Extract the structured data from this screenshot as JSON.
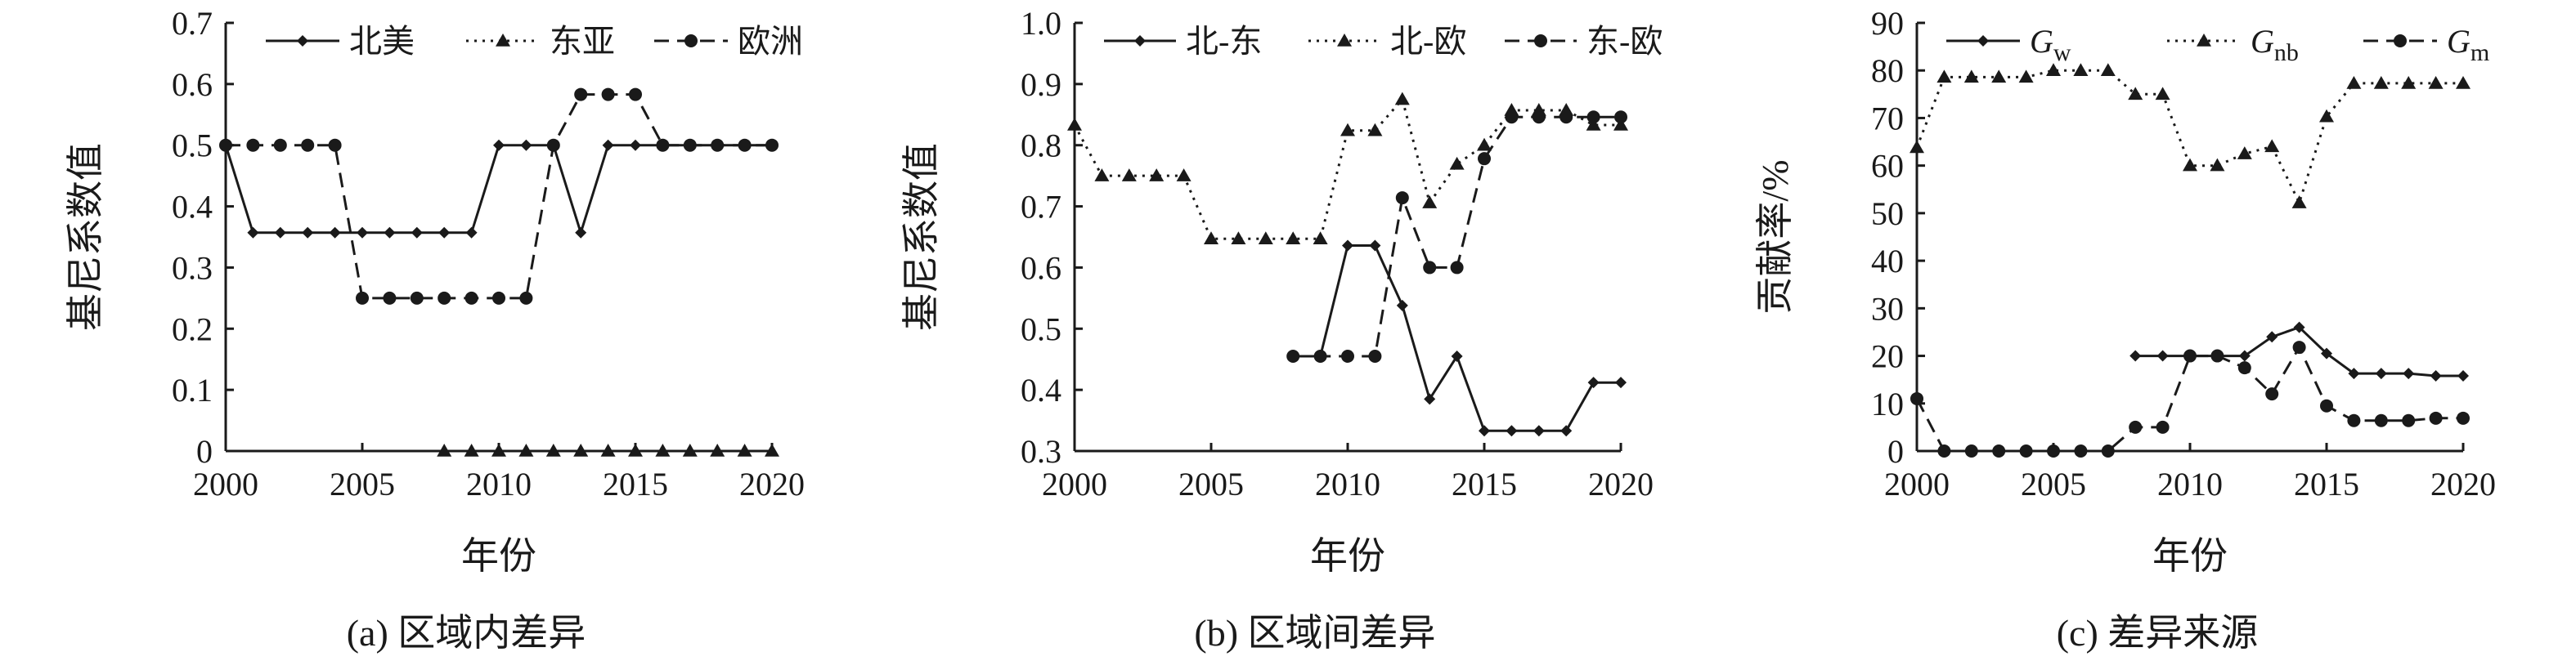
{
  "chart_data": [
    {
      "type": "line",
      "caption": "(a) 区域内差异",
      "xlabel": "年份",
      "ylabel": "基尼系数值",
      "xlim": [
        2000,
        2020
      ],
      "ylim": [
        0,
        0.7
      ],
      "xticks": [
        "2000",
        "2005",
        "2010",
        "2015",
        "2020"
      ],
      "yticks": [
        "0",
        "0.1",
        "0.2",
        "0.3",
        "0.4",
        "0.5",
        "0.6",
        "0.7"
      ],
      "legend_position": "top",
      "series": [
        {
          "name": "北美",
          "style": "solid",
          "marker": "diamond",
          "x": [
            2000,
            2001,
            2002,
            2003,
            2004,
            2005,
            2006,
            2007,
            2008,
            2009,
            2010,
            2011,
            2012,
            2013,
            2014,
            2015,
            2016,
            2017,
            2018,
            2019,
            2020
          ],
          "y": [
            0.5,
            0.357,
            0.357,
            0.357,
            0.357,
            0.357,
            0.357,
            0.357,
            0.357,
            0.357,
            0.5,
            0.5,
            0.5,
            0.357,
            0.5,
            0.5,
            0.5,
            0.5,
            0.5,
            0.5,
            0.5
          ]
        },
        {
          "name": "东亚",
          "style": "dotted",
          "marker": "triangle",
          "x": [
            2008,
            2009,
            2010,
            2011,
            2012,
            2013,
            2014,
            2015,
            2016,
            2017,
            2018,
            2019,
            2020
          ],
          "y": [
            0,
            0,
            0,
            0,
            0,
            0,
            0,
            0,
            0,
            0,
            0,
            0,
            0
          ]
        },
        {
          "name": "欧洲",
          "style": "dashed",
          "marker": "circle",
          "x": [
            2000,
            2001,
            2002,
            2003,
            2004,
            2005,
            2006,
            2007,
            2008,
            2009,
            2010,
            2011,
            2012,
            2013,
            2014,
            2015,
            2016,
            2017,
            2018,
            2019,
            2020
          ],
          "y": [
            0.5,
            0.5,
            0.5,
            0.5,
            0.5,
            0.25,
            0.25,
            0.25,
            0.25,
            0.25,
            0.25,
            0.25,
            0.5,
            0.583,
            0.583,
            0.583,
            0.5,
            0.5,
            0.5,
            0.5,
            0.5
          ]
        }
      ]
    },
    {
      "type": "line",
      "caption": "(b) 区域间差异",
      "xlabel": "年份",
      "ylabel": "基尼系数值",
      "xlim": [
        2000,
        2020
      ],
      "ylim": [
        0.3,
        1.0
      ],
      "xticks": [
        "2000",
        "2005",
        "2010",
        "2015",
        "2020"
      ],
      "yticks": [
        "0.3",
        "0.4",
        "0.5",
        "0.6",
        "0.7",
        "0.8",
        "0.9",
        "1.0"
      ],
      "legend_position": "top",
      "series": [
        {
          "name": "北-东",
          "style": "solid",
          "marker": "diamond",
          "x": [
            2008,
            2009,
            2010,
            2011,
            2012,
            2013,
            2014,
            2015,
            2016,
            2017,
            2018,
            2019,
            2020
          ],
          "y": [
            0.455,
            0.455,
            0.636,
            0.636,
            0.538,
            0.385,
            0.455,
            0.333,
            0.333,
            0.333,
            0.333,
            0.412,
            0.412
          ]
        },
        {
          "name": "北-欧",
          "style": "dotted",
          "marker": "triangle",
          "x": [
            2000,
            2001,
            2002,
            2003,
            2004,
            2005,
            2006,
            2007,
            2008,
            2009,
            2010,
            2011,
            2012,
            2013,
            2014,
            2015,
            2016,
            2017,
            2018,
            2019,
            2020
          ],
          "y": [
            0.833,
            0.75,
            0.75,
            0.75,
            0.75,
            0.647,
            0.647,
            0.647,
            0.647,
            0.647,
            0.824,
            0.824,
            0.875,
            0.706,
            0.769,
            0.8,
            0.857,
            0.857,
            0.857,
            0.833,
            0.833
          ]
        },
        {
          "name": "东-欧",
          "style": "dashed",
          "marker": "circle",
          "x": [
            2008,
            2009,
            2010,
            2011,
            2012,
            2013,
            2014,
            2015,
            2016,
            2017,
            2018,
            2019,
            2020
          ],
          "y": [
            0.455,
            0.455,
            0.455,
            0.455,
            0.714,
            0.6,
            0.6,
            0.778,
            0.846,
            0.846,
            0.846,
            0.846,
            0.846
          ]
        }
      ]
    },
    {
      "type": "line",
      "caption": "(c) 差异来源",
      "xlabel": "年份",
      "ylabel": "贡献率/%",
      "xlim": [
        2000,
        2020
      ],
      "ylim": [
        0,
        90
      ],
      "xticks": [
        "2000",
        "2005",
        "2010",
        "2015",
        "2020"
      ],
      "yticks": [
        "0",
        "10",
        "20",
        "30",
        "40",
        "50",
        "60",
        "70",
        "80",
        "90"
      ],
      "legend_position": "top",
      "series": [
        {
          "name": "G",
          "subscript": "w",
          "style": "solid",
          "marker": "diamond",
          "x": [
            2008,
            2009,
            2010,
            2011,
            2012,
            2013,
            2014,
            2015,
            2016,
            2017,
            2018,
            2019,
            2020
          ],
          "y": [
            20,
            20,
            20,
            20,
            20,
            24,
            26,
            20.5,
            16.3,
            16.3,
            16.3,
            15.8,
            15.8
          ]
        },
        {
          "name": "G",
          "subscript": "nb",
          "style": "dotted",
          "marker": "triangle",
          "x": [
            2000,
            2001,
            2002,
            2003,
            2004,
            2005,
            2006,
            2007,
            2008,
            2009,
            2010,
            2011,
            2012,
            2013,
            2014,
            2015,
            2016,
            2017,
            2018,
            2019,
            2020
          ],
          "y": [
            63.8,
            78.6,
            78.6,
            78.6,
            78.6,
            80,
            80,
            80,
            75,
            75,
            60,
            60,
            62.5,
            64,
            52.2,
            70.3,
            77.3,
            77.3,
            77.3,
            77.3,
            77.3
          ]
        },
        {
          "name": "G",
          "subscript": "m",
          "style": "dashed",
          "marker": "circle",
          "x": [
            2000,
            2001,
            2002,
            2003,
            2004,
            2005,
            2006,
            2007,
            2008,
            2009,
            2010,
            2011,
            2012,
            2013,
            2014,
            2015,
            2016,
            2017,
            2018,
            2019,
            2020
          ],
          "y": [
            11,
            0,
            0,
            0,
            0,
            0,
            0,
            0,
            5,
            5,
            20,
            20,
            17.5,
            12,
            21.8,
            9.5,
            6.4,
            6.4,
            6.4,
            6.9,
            6.9
          ]
        }
      ]
    }
  ]
}
